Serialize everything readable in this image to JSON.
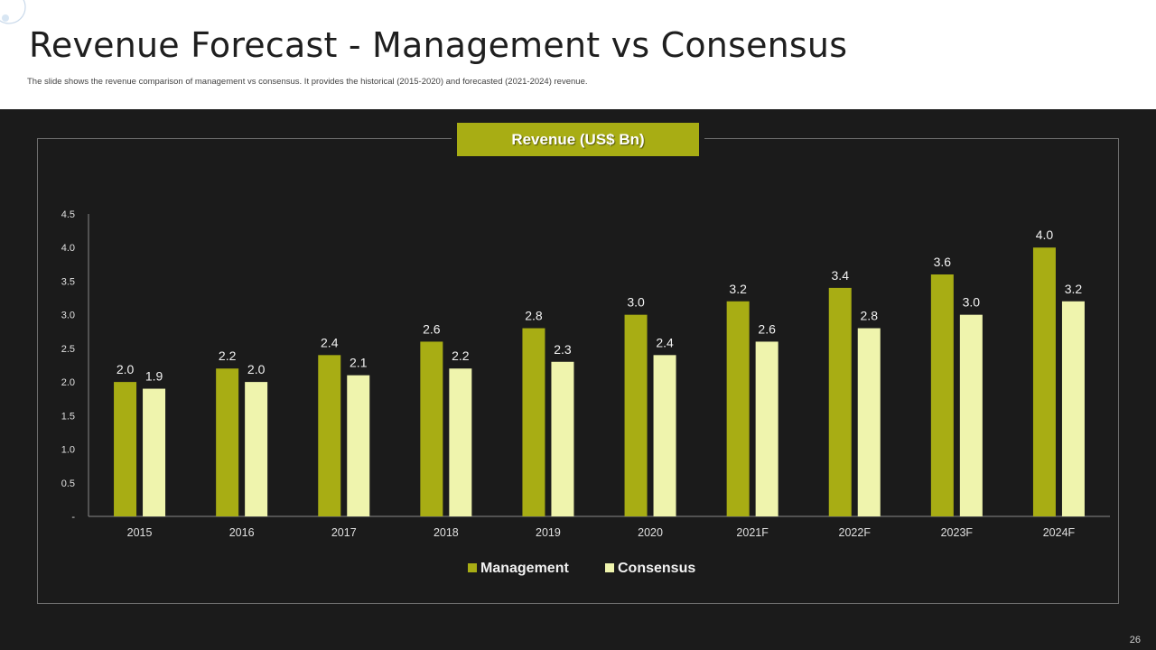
{
  "slide": {
    "title": "Revenue Forecast - Management vs Consensus",
    "subtitle": "The slide shows the revenue comparison of management vs consensus. It provides the historical (2015-2020) and forecasted (2021-2024) revenue.",
    "page_number": "26"
  },
  "colors": {
    "management": "#a8ad14",
    "consensus": "#eff4ad",
    "background": "#1b1b1b",
    "axis_text": "#e0e0e0"
  },
  "chart_data": {
    "type": "bar",
    "title": "Revenue (US$ Bn)",
    "categories": [
      "2015",
      "2016",
      "2017",
      "2018",
      "2019",
      "2020",
      "2021F",
      "2022F",
      "2023F",
      "2024F"
    ],
    "series": [
      {
        "name": "Management",
        "values": [
          2.0,
          2.2,
          2.4,
          2.6,
          2.8,
          3.0,
          3.2,
          3.4,
          3.6,
          4.0
        ]
      },
      {
        "name": "Consensus",
        "values": [
          1.9,
          2.0,
          2.1,
          2.2,
          2.3,
          2.4,
          2.6,
          2.8,
          3.0,
          3.2
        ]
      }
    ],
    "ylim": [
      0,
      4.5
    ],
    "yticks": [
      "-",
      "0.5",
      "1.0",
      "1.5",
      "2.0",
      "2.5",
      "3.0",
      "3.5",
      "4.0",
      "4.5"
    ],
    "data_labels": {
      "Management": [
        "2.0",
        "2.2",
        "2.4",
        "2.6",
        "2.8",
        "3.0",
        "3.2",
        "3.4",
        "3.6",
        "4.0"
      ],
      "Consensus": [
        "1.9",
        "2.0",
        "2.1",
        "2.2",
        "2.3",
        "2.4",
        "2.6",
        "2.8",
        "3.0",
        "3.2"
      ]
    },
    "grid": false,
    "legend": "bottom-center"
  }
}
